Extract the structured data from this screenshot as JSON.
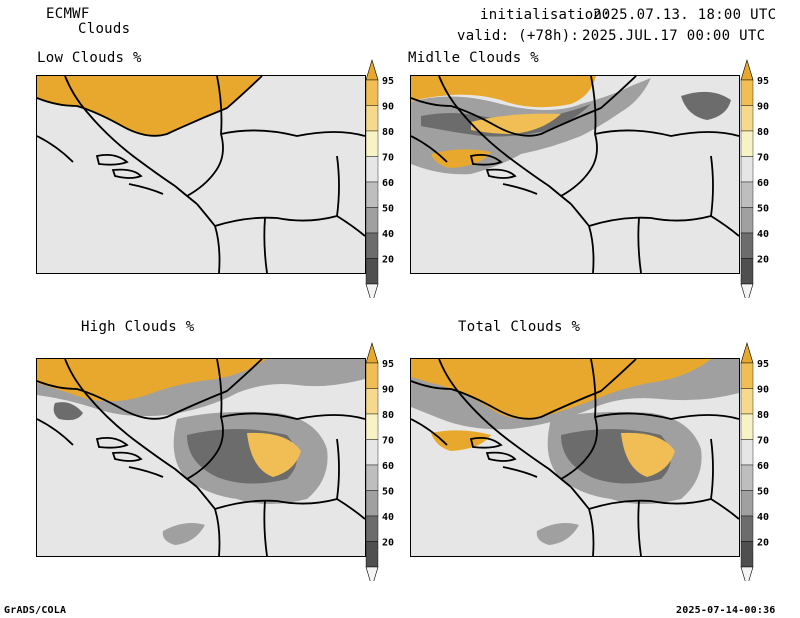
{
  "header": {
    "model": "ECMWF",
    "product": "Clouds",
    "init_label": "initialisation:",
    "init_value": "2025.07.13. 18:00 UTC",
    "valid_label": "valid: (+78h):",
    "valid_value": "2025.JUL.17 00:00 UTC"
  },
  "panels": [
    {
      "title": "Low Clouds %"
    },
    {
      "title": "Midlle Clouds %"
    },
    {
      "title": "High Clouds %"
    },
    {
      "title": "Total Clouds %"
    }
  ],
  "colorbar": {
    "levels": [
      "95",
      "90",
      "80",
      "70",
      "60",
      "50",
      "40",
      "20"
    ],
    "colors": [
      "#e8a82e",
      "#f0be55",
      "#f6d98c",
      "#f7f3c4",
      "#e6e6e6",
      "#bebebe",
      "#a0a0a0",
      "#6c6c6c",
      "#4f4f4f",
      "#f4f4f4"
    ]
  },
  "footer": {
    "left": "GrADS/COLA",
    "right": "2025-07-14-00:36"
  }
}
